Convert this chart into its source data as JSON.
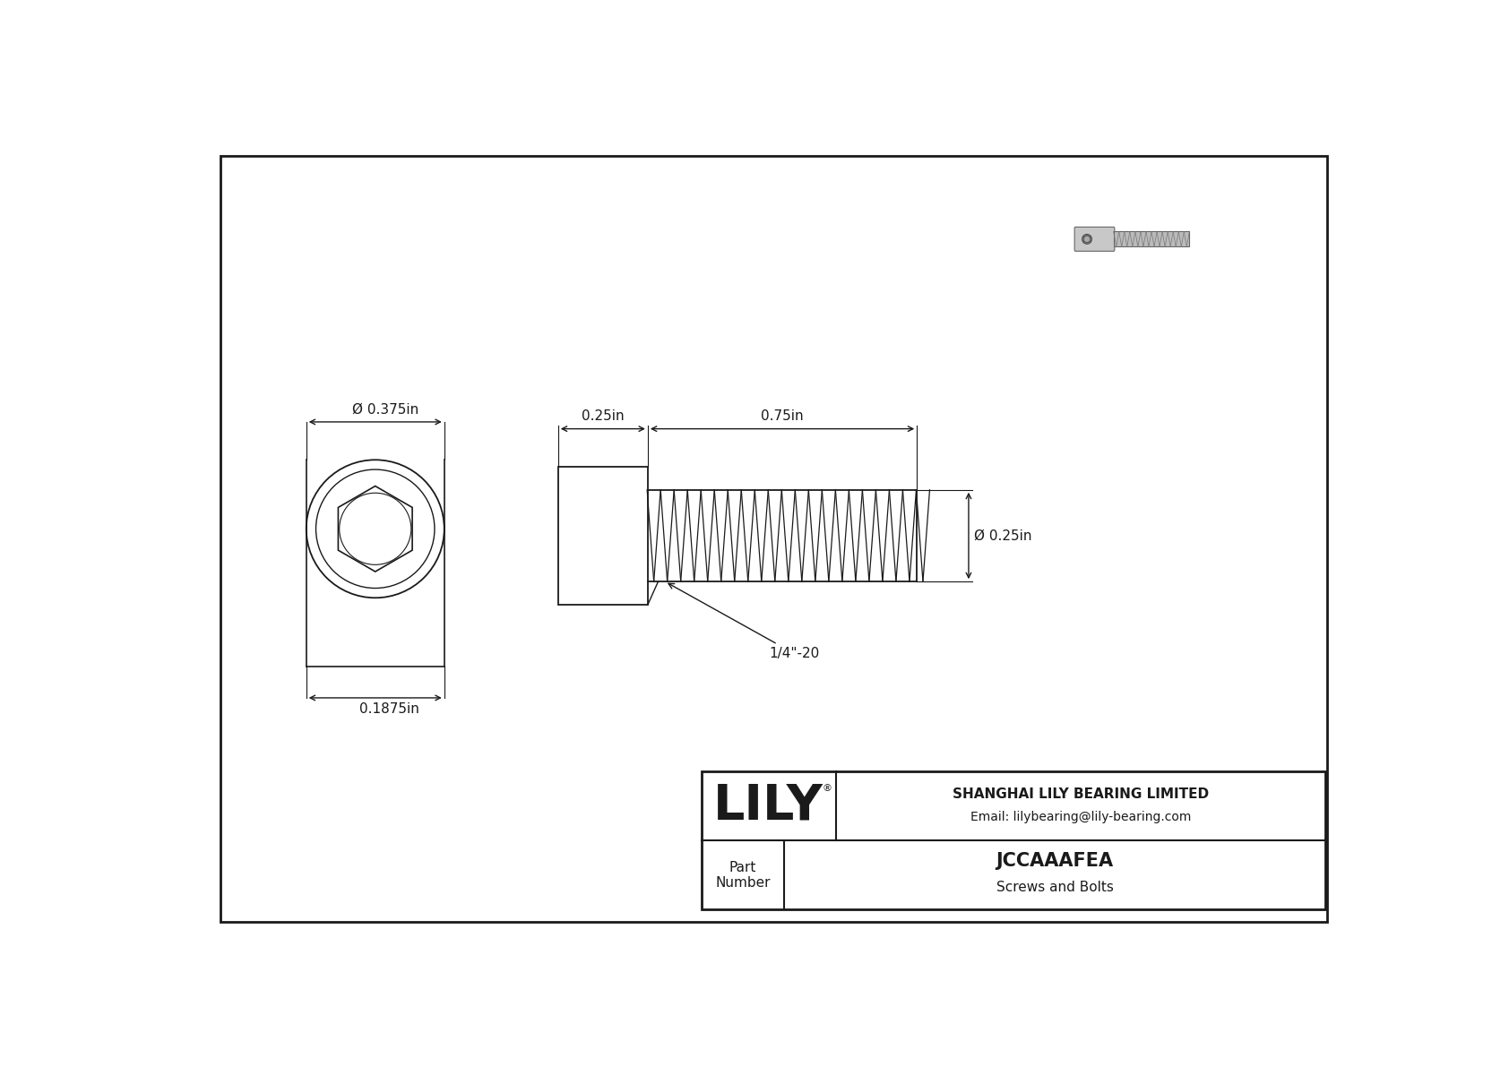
{
  "bg_color": "#ffffff",
  "line_color": "#1a1a1a",
  "title": "JCCAAAFEA",
  "subtitle": "Screws and Bolts",
  "company": "SHANGHAI LILY BEARING LIMITED",
  "email": "Email: lilybearing@lily-bearing.com",
  "part_label": "Part\nNumber",
  "dim_head_diameter": "Ø 0.375in",
  "dim_head_length": "0.25in",
  "dim_thread_length": "0.75in",
  "dim_thread_diameter": "Ø 0.25in",
  "dim_front_width": "0.1875in",
  "thread_label": "1/4\"-20",
  "font_size_dim": 11,
  "font_size_title": 15,
  "font_size_company": 11,
  "font_size_logo": 40,
  "font_size_small": 9
}
